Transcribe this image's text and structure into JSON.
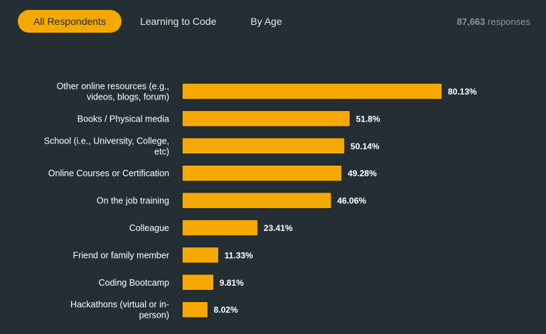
{
  "tabs": [
    {
      "label": "All Respondents",
      "active": true
    },
    {
      "label": "Learning to Code",
      "active": false
    },
    {
      "label": "By Age",
      "active": false
    }
  ],
  "responses": {
    "count": "87,663",
    "label": "responses"
  },
  "colors": {
    "bar": "#f5a900",
    "background": "#232f34",
    "accent": "#f5a900"
  },
  "chart_data": {
    "type": "bar",
    "orientation": "horizontal",
    "title": "",
    "xlabel": "",
    "ylabel": "",
    "xlim": [
      0,
      100
    ],
    "grid": false,
    "categories": [
      [
        "Other online resources (e.g.,",
        "videos, blogs, forum)"
      ],
      [
        "Books / Physical media"
      ],
      [
        "School (i.e., University, College,",
        "etc)"
      ],
      [
        "Online Courses or Certification"
      ],
      [
        "On the job training"
      ],
      [
        "Colleague"
      ],
      [
        "Friend or family member"
      ],
      [
        "Coding Bootcamp"
      ],
      [
        "Hackathons (virtual or in-",
        "person)"
      ]
    ],
    "values": [
      80.13,
      51.8,
      50.14,
      49.28,
      46.06,
      23.41,
      11.33,
      9.81,
      8.02
    ],
    "value_labels": [
      "80.13%",
      "51.8%",
      "50.14%",
      "49.28%",
      "46.06%",
      "23.41%",
      "11.33%",
      "9.81%",
      "8.02%"
    ]
  }
}
